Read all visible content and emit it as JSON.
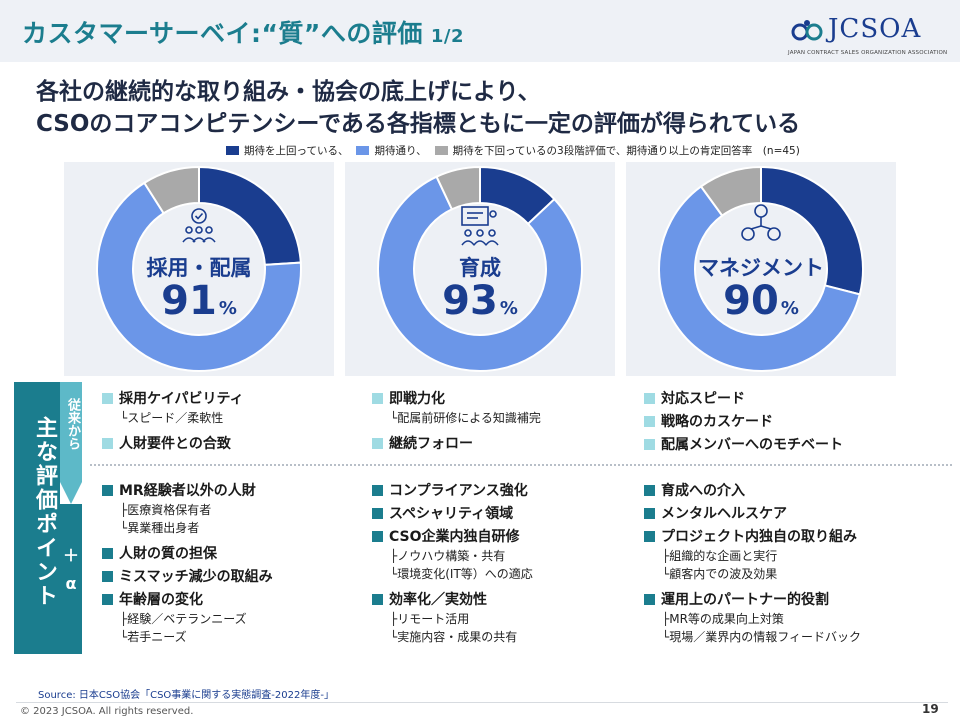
{
  "header": {
    "title": "カスタマーサーベイ:“質”への評価",
    "page": "1/2",
    "logo_text": "JCSOA",
    "logo_subtitle": "JAPAN CONTRACT SALES ORGANIZATION ASSOCIATION"
  },
  "headline": {
    "line1": "各社の継続的な取り組み・協会の底上げにより、",
    "line2": "CSOのコアコンピテンシーである各指標ともに一定の評価が得られている"
  },
  "legend": {
    "above": "期待を上回っている、",
    "meets": "期待通り、",
    "below": "期待を下回っているの3段階評価で、期待通り以上の肯定回答率　(n=45)"
  },
  "colors": {
    "above": "#1a3d8f",
    "meets": "#6b96e8",
    "below": "#a9a9a9",
    "teal": "#1b7d8e",
    "teal_light": "#5db9c8"
  },
  "chart_data": [
    {
      "type": "pie",
      "label": "採用・配属",
      "value_text": "91",
      "pct_symbol": "%",
      "segments": [
        {
          "name": "期待を上回っている",
          "value": 24
        },
        {
          "name": "期待通り",
          "value": 67
        },
        {
          "name": "期待を下回っている",
          "value": 9
        }
      ]
    },
    {
      "type": "pie",
      "label": "育成",
      "value_text": "93",
      "pct_symbol": "%",
      "segments": [
        {
          "name": "期待を上回っている",
          "value": 13
        },
        {
          "name": "期待通り",
          "value": 80
        },
        {
          "name": "期待を下回っている",
          "value": 7
        }
      ]
    },
    {
      "type": "pie",
      "label": "マネジメント",
      "value_text": "90",
      "pct_symbol": "%",
      "segments": [
        {
          "name": "期待を上回っている",
          "value": 29
        },
        {
          "name": "期待通り",
          "value": 61
        },
        {
          "name": "期待を下回っている",
          "value": 10
        }
      ]
    }
  ],
  "sidebar": {
    "main_label": "主な評価ポイント",
    "conventional_label": "従来から",
    "plus_label": "＋",
    "alpha_label": "α"
  },
  "columns": [
    {
      "conventional": [
        {
          "text": "採用ケイパビリティ",
          "subs": [
            "└スピード／柔軟性"
          ]
        },
        {
          "text": "人財要件との合致",
          "subs": []
        }
      ],
      "plus": [
        {
          "text": "MR経験者以外の人財",
          "subs": [
            "├医療資格保有者",
            "└異業種出身者"
          ]
        },
        {
          "text": "人財の質の担保",
          "subs": []
        },
        {
          "text": "ミスマッチ減少の取組み",
          "subs": []
        },
        {
          "text": "年齢層の変化",
          "subs": [
            "├経験／ベテランニーズ",
            "└若手ニーズ"
          ]
        }
      ]
    },
    {
      "conventional": [
        {
          "text": "即戦力化",
          "subs": [
            "└配属前研修による知識補完"
          ]
        },
        {
          "text": "継続フォロー",
          "subs": []
        }
      ],
      "plus": [
        {
          "text": "コンプライアンス強化",
          "subs": []
        },
        {
          "text": "スペシャリティ領域",
          "subs": []
        },
        {
          "text": "CSO企業内独自研修",
          "subs": [
            "├ノウハウ構築・共有",
            "└環境変化(IT等）への適応"
          ]
        },
        {
          "text": "効率化／実効性",
          "subs": [
            "├リモート活用",
            "└実施内容・成果の共有"
          ]
        }
      ]
    },
    {
      "conventional": [
        {
          "text": "対応スピード",
          "subs": []
        },
        {
          "text": "戦略のカスケード",
          "subs": []
        },
        {
          "text": "配属メンバーへのモチベート",
          "subs": []
        }
      ],
      "plus": [
        {
          "text": "育成への介入",
          "subs": []
        },
        {
          "text": "メンタルヘルスケア",
          "subs": []
        },
        {
          "text": "プロジェクト内独自の取り組み",
          "subs": [
            "├組織的な企画と実行",
            "└顧客内での波及効果"
          ]
        },
        {
          "text": "運用上のパートナー的役割",
          "subs": [
            "├MR等の成果向上対策",
            "└現場／業界内の情報フィードバック"
          ]
        }
      ]
    }
  ],
  "source": "Source: 日本CSO協会「CSO事業に関する実態調査-2022年度-」",
  "footer": {
    "copyright": "© 2023 JCSOA. All rights reserved.",
    "page_number": "19"
  }
}
